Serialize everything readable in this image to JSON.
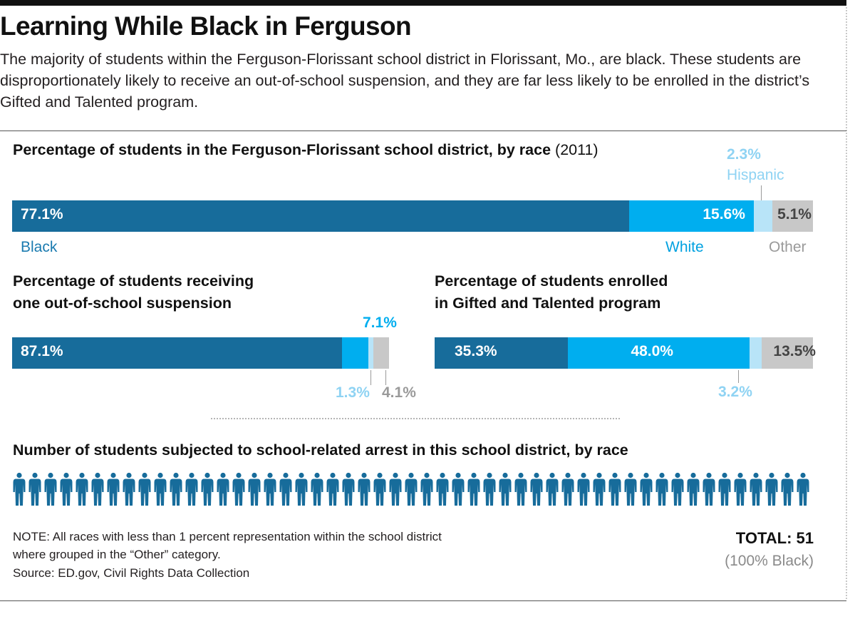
{
  "headline": "Learning While Black in Ferguson",
  "dek": "The majority of students within the Ferguson-Florissant school district in Florissant, Mo., are black. These students are disproportionately likely to receive an out-of-school suspension, and they are far less likely to be enrolled in the district’s Gifted and Talented program.",
  "colors": {
    "black": "#176c9b",
    "white": "#00aeef",
    "hispanic": "#b8e4f8",
    "other": "#c8c8c8",
    "icon": "#176c9b"
  },
  "chart_data": [
    {
      "type": "bar",
      "orientation": "horizontal",
      "stacked": true,
      "title": "Percentage of students in the Ferguson-Florissant school district, by race",
      "subtitle": "(2011)",
      "series": [
        {
          "name": "Black",
          "value": 77.1,
          "value_label": "77.1%"
        },
        {
          "name": "White",
          "value": 15.6,
          "value_label": "15.6%"
        },
        {
          "name": "Hispanic",
          "value": 2.3,
          "value_label": "2.3%"
        },
        {
          "name": "Other",
          "value": 5.1,
          "value_label": "5.1%"
        }
      ]
    },
    {
      "type": "bar",
      "orientation": "horizontal",
      "stacked": true,
      "title": "Percentage of students receiving one out-of-school suspension",
      "title_lines": [
        "Percentage of students receiving",
        "one out-of-school suspension"
      ],
      "series": [
        {
          "value": 87.1,
          "value_label": "87.1%"
        },
        {
          "value": 7.1,
          "value_label": "7.1%"
        },
        {
          "value": 1.3,
          "value_label": "1.3%"
        },
        {
          "value": 4.1,
          "value_label": "4.1%"
        }
      ]
    },
    {
      "type": "bar",
      "orientation": "horizontal",
      "stacked": true,
      "title": "Percentage of students enrolled in Gifted and Talented program",
      "title_lines": [
        "Percentage of students enrolled",
        "in Gifted and Talented program"
      ],
      "series": [
        {
          "value": 35.3,
          "value_label": "35.3%"
        },
        {
          "value": 48.0,
          "value_label": "48.0%"
        },
        {
          "value": 3.2,
          "value_label": "3.2%"
        },
        {
          "value": 13.5,
          "value_label": "13.5%"
        }
      ]
    },
    {
      "type": "pictogram",
      "title": "Number of students subjected to school-related arrest in this school district,  by race",
      "count": 51,
      "icon": "person-icon",
      "total_label": "TOTAL: 51",
      "total_sub": "(100% Black)"
    }
  ],
  "note": "NOTE: All races with less than 1 percent representation within the school district where grouped in the “Other” category.",
  "source": "Source: ED.gov, Civil Rights Data Collection"
}
